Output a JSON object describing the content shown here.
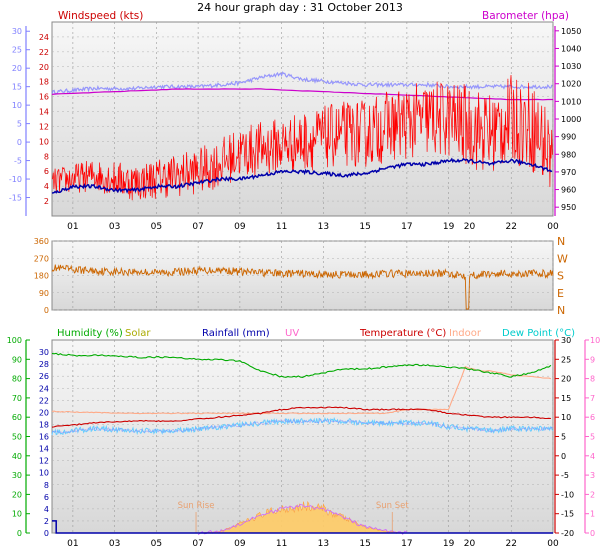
{
  "chart_data": [
    {
      "id": "top",
      "type": "line",
      "title": "24 hour graph day : 31 October 2013",
      "left_axis_label": "Windspeed (kts)",
      "right_axis_label": "Barometer (hpa)",
      "x_hour_labels": [
        "01",
        "03",
        "05",
        "07",
        "09",
        "11",
        "13",
        "15",
        "17",
        "19",
        "20",
        "22",
        "00"
      ],
      "y_left_ticks": [
        2,
        4,
        6,
        8,
        10,
        12,
        14,
        16,
        18,
        20,
        22,
        24
      ],
      "y_left_range": [
        0,
        26
      ],
      "y_outer_ticks": [
        -15,
        -10,
        -5,
        0,
        5,
        10,
        15,
        20,
        25,
        30
      ],
      "y_outer_range": [
        -20,
        32.5
      ],
      "y_right_ticks": [
        950,
        960,
        970,
        980,
        990,
        1000,
        1010,
        1020,
        1030,
        1040,
        1050
      ],
      "y_right_range": [
        945,
        1055
      ],
      "colors": {
        "wind": "#ff0000",
        "gust": "#ff0000",
        "baro": "#cc00cc",
        "outer": "#8080ff",
        "dark": "#0000aa",
        "label_left": "#cc0000",
        "label_right": "#cc00cc"
      },
      "series": [
        {
          "key": "wind",
          "name": "Windspeed (kts)",
          "x": [
            0,
            1,
            2,
            3,
            4,
            5,
            6,
            7,
            8,
            9,
            10,
            11,
            12,
            13,
            14,
            15,
            16,
            17,
            18,
            19,
            20,
            21,
            22,
            23,
            24
          ],
          "values": [
            4.5,
            5,
            5.5,
            5,
            4.5,
            5,
            5.5,
            6,
            7,
            8.5,
            9,
            9.5,
            10,
            10.5,
            11,
            11,
            12,
            12.5,
            13,
            13,
            12,
            11,
            13,
            12,
            8
          ]
        },
        {
          "key": "baro",
          "name": "Barometer (hpa)",
          "x": [
            0,
            2,
            4,
            6,
            8,
            10,
            12,
            14,
            16,
            18,
            20,
            22,
            24
          ],
          "values": [
            1014,
            1015,
            1016,
            1017,
            1017,
            1017,
            1016,
            1015,
            1014,
            1013,
            1012,
            1011,
            1011
          ]
        },
        {
          "key": "outer",
          "name": "",
          "x": [
            0,
            1,
            2,
            3,
            4,
            5,
            6,
            7,
            8,
            9,
            10,
            10.5,
            11,
            12,
            13,
            14,
            15,
            16,
            17,
            18,
            19,
            20,
            21,
            22,
            23,
            24
          ],
          "values": [
            13.5,
            14,
            14.5,
            14.5,
            14.5,
            15,
            15,
            15,
            15.5,
            16,
            17.5,
            18,
            18.5,
            17,
            16.5,
            16,
            15.5,
            15.5,
            15.5,
            15.5,
            15,
            15,
            15,
            15,
            15,
            15
          ]
        },
        {
          "key": "dark",
          "name": "",
          "x": [
            0,
            1,
            2,
            3,
            4,
            5,
            6,
            7,
            8,
            9,
            10,
            11,
            12,
            13,
            14,
            15,
            16,
            17,
            18,
            19,
            20,
            21,
            22,
            23,
            24
          ],
          "values": [
            -14,
            -12,
            -12,
            -13,
            -13,
            -12,
            -12,
            -11,
            -10,
            -10,
            -9,
            -8,
            -8,
            -8.5,
            -9,
            -8.5,
            -7,
            -6,
            -6,
            -5,
            -5,
            -6,
            -5,
            -6,
            -8
          ]
        }
      ]
    },
    {
      "id": "dir",
      "type": "line",
      "y_ticks": [
        0,
        90,
        180,
        270,
        360
      ],
      "y_range": [
        0,
        360
      ],
      "compass_labels": [
        "N",
        "W",
        "S",
        "E",
        "N"
      ],
      "color": "#cc6600",
      "series": [
        {
          "key": "dir",
          "name": "",
          "x": [
            0,
            1,
            2,
            3,
            4,
            5,
            6,
            7,
            8,
            9,
            10,
            11,
            12,
            13,
            14,
            15,
            16,
            17,
            18,
            19,
            20,
            21,
            22,
            23,
            24
          ],
          "values": [
            220,
            210,
            205,
            200,
            200,
            195,
            200,
            205,
            210,
            200,
            195,
            190,
            190,
            185,
            185,
            185,
            190,
            190,
            190,
            190,
            180,
            190,
            190,
            190,
            190
          ]
        }
      ],
      "note_drop_at_x": 19.9
    },
    {
      "id": "bottom",
      "type": "line",
      "legend": [
        {
          "label": "Humidity (%)",
          "color": "#00aa00"
        },
        {
          "label": "Solar",
          "color": "#aaaa00"
        },
        {
          "label": "Rainfall (mm)",
          "color": "#0000aa"
        },
        {
          "label": "UV",
          "color": "#ff66cc"
        },
        {
          "label": "Temperature (°C)",
          "color": "#cc0000"
        },
        {
          "label": "Indoor",
          "color": "#ffaa88"
        },
        {
          "label": "Dew Point (°C)",
          "color": "#00cccc"
        }
      ],
      "x_hour_labels": [
        "01",
        "03",
        "05",
        "07",
        "09",
        "11",
        "13",
        "15",
        "17",
        "19",
        "20",
        "22",
        "00"
      ],
      "sun_rise_label": "Sun Rise",
      "sun_set_label": "Sun Set",
      "sun_rise_x": 6.9,
      "sun_set_x": 16.3,
      "y_far_left_ticks": [
        0,
        10,
        20,
        30,
        40,
        50,
        60,
        70,
        80,
        90,
        100
      ],
      "y_left_ticks": [
        0,
        2,
        4,
        6,
        8,
        10,
        12,
        14,
        16,
        18,
        20,
        22,
        24,
        26,
        28,
        30
      ],
      "y_temp_ticks": [
        -20,
        -15,
        -10,
        -5,
        0,
        5,
        10,
        15,
        20,
        25,
        30
      ],
      "y_uv_ticks": [
        0,
        1,
        2,
        3,
        4,
        5,
        6,
        7,
        8,
        9,
        10
      ],
      "series": [
        {
          "key": "humidity",
          "name": "Humidity (%)",
          "x": [
            0,
            1,
            2,
            3,
            4,
            5,
            6,
            7,
            8,
            9,
            10,
            11,
            12,
            13,
            14,
            15,
            16,
            17,
            18,
            19,
            20,
            21,
            22,
            23,
            24
          ],
          "values": [
            93,
            92,
            92,
            92,
            91,
            91,
            91,
            90,
            90,
            89,
            84,
            81,
            81,
            83,
            85,
            85,
            86,
            87,
            87,
            86,
            85,
            83,
            81,
            83,
            87
          ]
        },
        {
          "key": "indoor",
          "name": "Indoor",
          "x": [
            0,
            2,
            4,
            6,
            8,
            10,
            12,
            14,
            16,
            17,
            18,
            19,
            19.8,
            20.5,
            21,
            22,
            23,
            24
          ],
          "values": [
            11.5,
            11.2,
            11,
            11,
            11,
            11,
            11,
            11,
            11,
            12,
            12,
            12,
            23,
            22,
            22,
            21,
            20.5,
            20
          ]
        },
        {
          "key": "temp",
          "name": "Temperature (°C)",
          "x": [
            0,
            1,
            2,
            3,
            4,
            5,
            6,
            7,
            8,
            9,
            10,
            11,
            12,
            13,
            14,
            15,
            16,
            17,
            18,
            19,
            20,
            21,
            22,
            23,
            24
          ],
          "values": [
            7.5,
            8,
            8.5,
            8.8,
            9,
            9,
            9,
            9.5,
            10,
            10.5,
            11,
            12,
            12.5,
            12.5,
            12.5,
            12,
            12,
            12,
            12,
            11,
            10.5,
            10,
            10,
            10,
            9.5
          ]
        },
        {
          "key": "dew",
          "name": "Dew Point (°C)",
          "x": [
            0,
            1,
            2,
            3,
            4,
            5,
            6,
            7,
            8,
            9,
            10,
            11,
            12,
            13,
            14,
            15,
            16,
            17,
            18,
            19,
            20,
            21,
            22,
            23,
            24
          ],
          "values": [
            6,
            6.5,
            7,
            6.8,
            6.5,
            6.5,
            6.5,
            7,
            7.5,
            8,
            8.5,
            9,
            9,
            9,
            9,
            8.5,
            8.5,
            8.5,
            8.5,
            7.5,
            7,
            6.5,
            7,
            7,
            7
          ]
        },
        {
          "key": "solar",
          "name": "Solar",
          "x": [
            7,
            8,
            9,
            10,
            11,
            12,
            13,
            14,
            15,
            16,
            17
          ],
          "values": [
            0,
            0.2,
            1.5,
            3,
            4,
            4.5,
            4,
            2.5,
            1,
            0.3,
            0
          ]
        },
        {
          "key": "rain",
          "name": "Rainfall (mm)",
          "x": [
            0,
            0.05,
            0.2,
            0.2,
            24
          ],
          "values": [
            2,
            2,
            2,
            0,
            0
          ]
        }
      ]
    }
  ]
}
